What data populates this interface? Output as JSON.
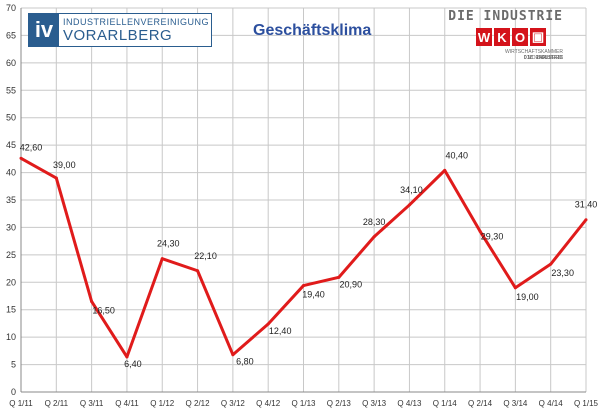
{
  "logos": {
    "iv_mark": "iv",
    "iv_line1": "INDUSTRIELLENVEREINIGUNG",
    "iv_line2": "VORARLBERG",
    "wko_top": "DIE INDUSTRIE",
    "wko_letters": [
      "W",
      "K",
      "O",
      "▣"
    ],
    "wko_sub": "WIRTSCHAFTSKAMMER VORARLBERG",
    "wko_sub2": "DIE INDUSTRIE"
  },
  "chart_data": {
    "type": "line",
    "title": "Geschäftsklima",
    "categories": [
      "Q 1/11",
      "Q 2/11",
      "Q 3/11",
      "Q 4/11",
      "Q 1/12",
      "Q 2/12",
      "Q 3/12",
      "Q 4/12",
      "Q 1/13",
      "Q 2/13",
      "Q 3/13",
      "Q 4/13",
      "Q 1/14",
      "Q 2/14",
      "Q 3/14",
      "Q 4/14",
      "Q 1/15"
    ],
    "series": [
      {
        "values": [
          42.6,
          39.0,
          16.5,
          6.4,
          24.3,
          22.1,
          6.8,
          12.4,
          19.4,
          20.9,
          28.3,
          34.1,
          40.4,
          29.3,
          19.0,
          23.3,
          31.4
        ]
      }
    ],
    "data_labels": [
      "42,60",
      "39,00",
      "16,50",
      "6,40",
      "24,30",
      "22,10",
      "6,80",
      "12,40",
      "19,40",
      "20,90",
      "28,30",
      "34,10",
      "40,40",
      "29,30",
      "19,00",
      "23,30",
      "31,40"
    ],
    "ylim": [
      0,
      70
    ],
    "yticks": [
      0,
      5,
      10,
      15,
      20,
      25,
      30,
      35,
      40,
      45,
      50,
      55,
      60,
      65,
      70
    ],
    "grid": true,
    "colors": {
      "line": "#e01b1b",
      "grid": "#c8c8c8",
      "title": "#2c4f9e"
    }
  }
}
